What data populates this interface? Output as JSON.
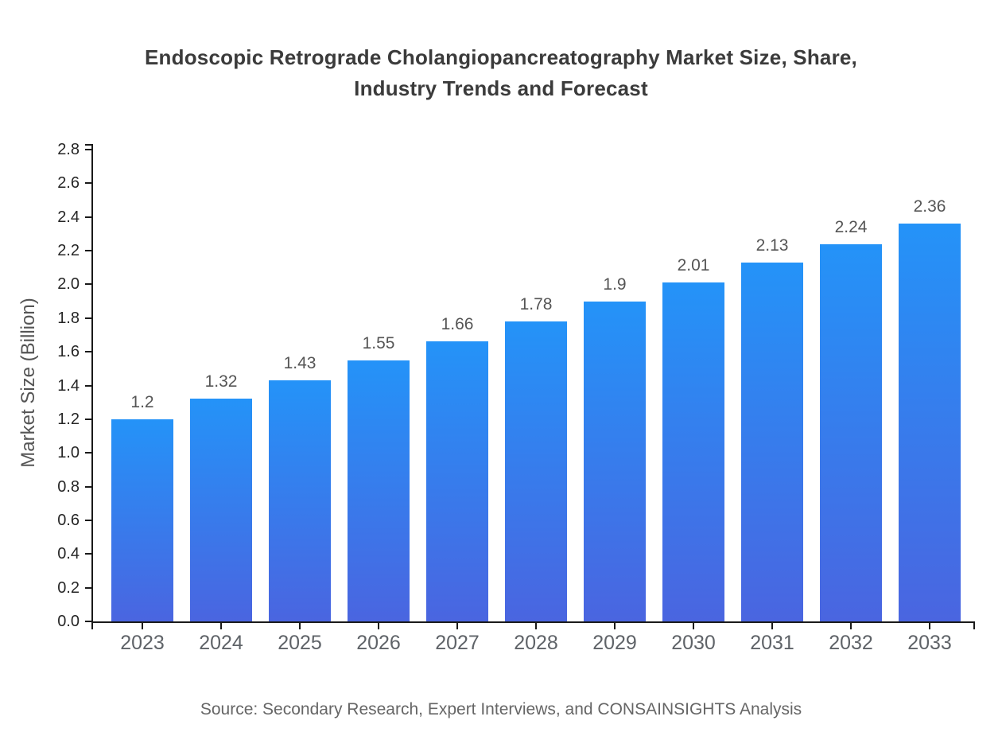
{
  "title": {
    "line1": "Endoscopic Retrograde Cholangiopancreatography Market Size, Share,",
    "line2": "Industry Trends and Forecast"
  },
  "source_note": "Source: Secondary Research, Expert Interviews, and CONSAINSIGHTS Analysis",
  "chart_data": {
    "type": "bar",
    "title": "Endoscopic Retrograde Cholangiopancreatography Market Size, Share, Industry Trends and Forecast",
    "categories": [
      "2023",
      "2024",
      "2025",
      "2026",
      "2027",
      "2028",
      "2029",
      "2030",
      "2031",
      "2032",
      "2033"
    ],
    "values": [
      1.2,
      1.32,
      1.43,
      1.55,
      1.66,
      1.78,
      1.9,
      2.01,
      2.13,
      2.24,
      2.36
    ],
    "value_labels": [
      "1.2",
      "1.32",
      "1.43",
      "1.55",
      "1.66",
      "1.78",
      "1.9",
      "2.01",
      "2.13",
      "2.24",
      "2.36"
    ],
    "xlabel": "",
    "ylabel": "Market Size (Billion)",
    "ylim": [
      0,
      2.8
    ],
    "ytick_step": 0.2,
    "yticks": [
      "0.0",
      "0.2",
      "0.4",
      "0.6",
      "0.8",
      "1.0",
      "1.2",
      "1.4",
      "1.6",
      "1.8",
      "2.0",
      "2.2",
      "2.4",
      "2.6",
      "2.8"
    ],
    "grid": false,
    "legend": false,
    "colors": {
      "bar_gradient_top": "#2493f8",
      "bar_gradient_bottom": "#4a65e0",
      "axis": "#1a1a1a",
      "ytick_label": "#262626",
      "xtick_label": "#5f6368",
      "value_label": "#555555",
      "title": "#3b3b3b",
      "axis_title": "#555555",
      "source": "#666666"
    }
  }
}
